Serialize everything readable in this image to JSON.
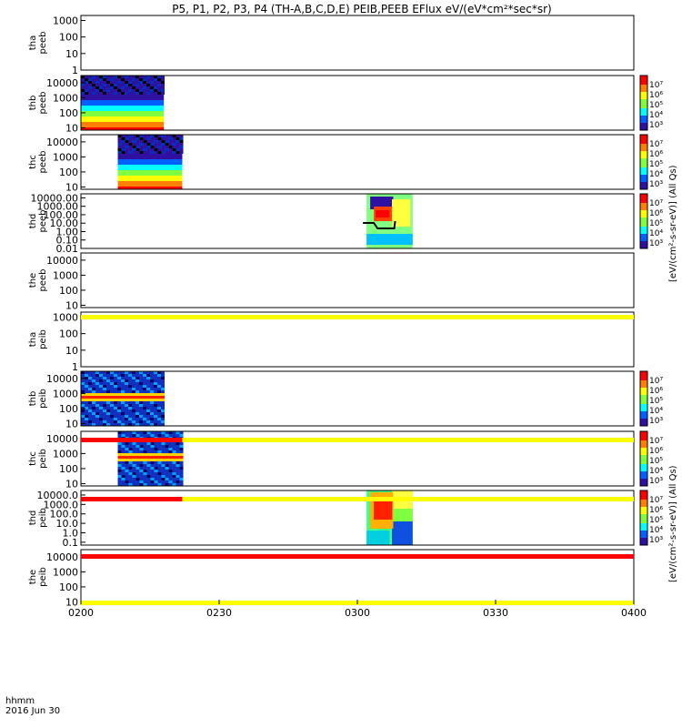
{
  "title": "P5, P1, P2, P3, P4 (TH-A,B,C,D,E) PEIB,PEEB EFlux eV/(eV*cm²*sec*sr)",
  "time_axis": {
    "ticks": [
      "0200",
      "0230",
      "0300",
      "0330",
      "0400"
    ],
    "label_line1": "hhmm",
    "label_line2": "2016 Jun 30",
    "range_minutes": [
      120,
      240
    ]
  },
  "colorbar_labels": {
    "peeb": "[eV/(cm²-s-sr-eV)] (All Qs)",
    "peib": "[eV/(cm²-s-sr-eV)] (All Qs)"
  },
  "colors": {
    "flag_yellow": "#ffff00",
    "flag_red": "#ff0000",
    "low_purple": "#5a1090",
    "mid_cyan": "#00e0ff",
    "mid_green": "#80ff40",
    "high_red": "#ff0000"
  },
  "chart_data": {
    "type": "heatmap",
    "panels": [
      {
        "id": "tha_peeb",
        "ylabel1": "tha",
        "ylabel2": "peeb",
        "yticks": [
          "1000",
          "100",
          "10",
          "1"
        ],
        "ylim": [
          1,
          2000
        ],
        "colorbar": null,
        "blocks": []
      },
      {
        "id": "thb_peeb",
        "ylabel1": "thb",
        "ylabel2": "peeb",
        "yticks": [
          "10000",
          "1000",
          "100",
          "10"
        ],
        "ylim": [
          7,
          30000
        ],
        "colorbar": [
          "10⁷",
          "10⁶",
          "10⁵",
          "10⁴",
          "10³"
        ],
        "blocks": [
          {
            "t0": 120,
            "t1": 138,
            "style": "spectrum_low"
          }
        ]
      },
      {
        "id": "thc_peeb",
        "ylabel1": "thc",
        "ylabel2": "peeb",
        "yticks": [
          "10000",
          "1000",
          "100",
          "10"
        ],
        "ylim": [
          7,
          30000
        ],
        "colorbar": [
          "10⁷",
          "10⁶",
          "10⁵",
          "10⁴",
          "10³"
        ],
        "blocks": [
          {
            "t0": 128,
            "t1": 142,
            "style": "spectrum_low"
          }
        ]
      },
      {
        "id": "thd_peeb",
        "ylabel1": "thd",
        "ylabel2": "peeb",
        "yticks": [
          "10000.00",
          "1000.00",
          "100.00",
          "10.00",
          "1.00",
          "0.10",
          "0.01"
        ],
        "ylim": [
          0.01,
          30000
        ],
        "colorbar": [
          "10⁷",
          "10⁶",
          "10⁵",
          "10⁴",
          "10³"
        ],
        "blocks": [
          {
            "t0": 182,
            "t1": 192,
            "style": "spectrum_burst"
          }
        ]
      },
      {
        "id": "the_peeb",
        "ylabel1": "the",
        "ylabel2": "peeb",
        "yticks": [
          "10000",
          "1000",
          "100",
          "10"
        ],
        "ylim": [
          7,
          30000
        ],
        "colorbar": null,
        "blocks": []
      },
      {
        "id": "tha_peib",
        "ylabel1": "tha",
        "ylabel2": "peib",
        "yticks": [
          "1000",
          "100",
          "10",
          "1"
        ],
        "ylim": [
          1,
          2000
        ],
        "colorbar": null,
        "blocks": []
      },
      {
        "id": "thb_peib",
        "ylabel1": "thb",
        "ylabel2": "peib",
        "yticks": [
          "10000",
          "1000",
          "100",
          "10"
        ],
        "ylim": [
          7,
          30000
        ],
        "colorbar": [
          "10⁷",
          "10⁶",
          "10⁵",
          "10⁴",
          "10³"
        ],
        "blocks": [
          {
            "t0": 120,
            "t1": 138,
            "style": "ion_speckle"
          }
        ]
      },
      {
        "id": "thc_peib",
        "ylabel1": "thc",
        "ylabel2": "peib",
        "yticks": [
          "10000",
          "1000",
          "100",
          "10"
        ],
        "ylim": [
          7,
          30000
        ],
        "colorbar": [
          "10⁷",
          "10⁶",
          "10⁵",
          "10⁴",
          "10³"
        ],
        "blocks": [
          {
            "t0": 128,
            "t1": 142,
            "style": "ion_speckle"
          }
        ]
      },
      {
        "id": "thd_peib",
        "ylabel1": "thd",
        "ylabel2": "peib",
        "yticks": [
          "10000.0",
          "1000.0",
          "100.0",
          "10.0",
          "1.0",
          "0.1"
        ],
        "ylim": [
          0.05,
          30000
        ],
        "colorbar": [
          "10⁷",
          "10⁶",
          "10⁵",
          "10⁴",
          "10³"
        ],
        "blocks": [
          {
            "t0": 182,
            "t1": 192,
            "style": "ion_burst"
          }
        ]
      },
      {
        "id": "the_peib",
        "ylabel1": "the",
        "ylabel2": "peib",
        "yticks": [
          "10000",
          "1000",
          "100",
          "10"
        ],
        "ylim": [
          7,
          30000
        ],
        "colorbar": null,
        "blocks": []
      }
    ],
    "flag_bars": [
      {
        "color": "yellow",
        "segments": [
          [
            120,
            240
          ]
        ]
      },
      {
        "color": "red+yellow",
        "segments": [
          [
            120,
            142,
            "red"
          ],
          [
            142,
            240,
            "yellow"
          ]
        ]
      },
      {
        "color": "red+yellow",
        "segments": [
          [
            120,
            142,
            "red"
          ],
          [
            142,
            240,
            "yellow"
          ]
        ]
      },
      {
        "color": "red",
        "segments": [
          [
            120,
            240,
            "red"
          ]
        ]
      },
      {
        "color": "yellow",
        "segments": [
          [
            120,
            240,
            "yellow"
          ]
        ]
      }
    ]
  }
}
